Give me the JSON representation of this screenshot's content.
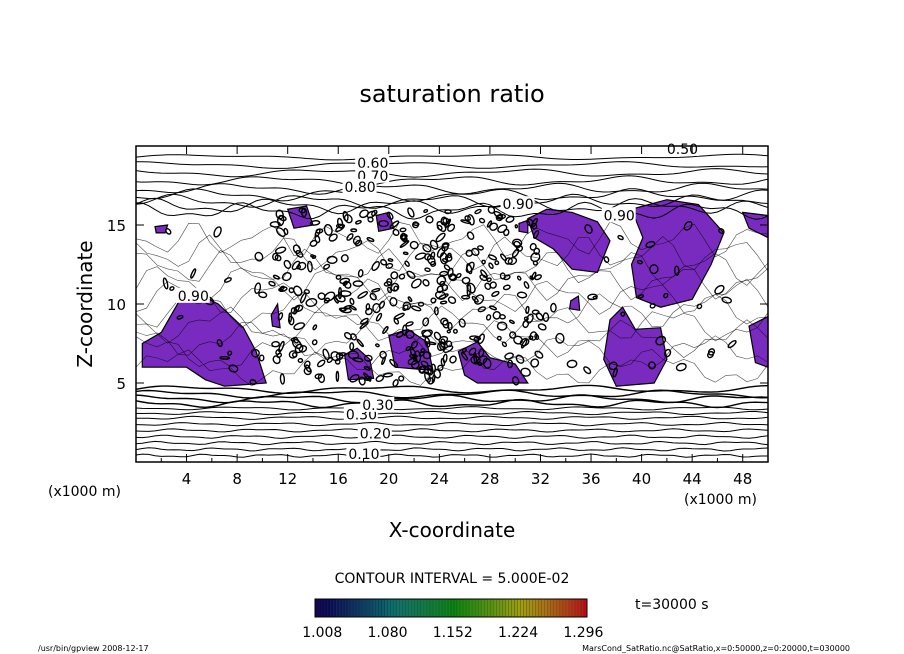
{
  "chart_data": {
    "type": "contour",
    "title": "saturation ratio",
    "xlabel": "X-coordinate",
    "ylabel": "Z-coordinate",
    "x_unit": "(x1000 m)",
    "z_unit": "(x1000 m)",
    "xlim": [
      0,
      50
    ],
    "zlim": [
      0,
      20
    ],
    "x_ticks": [
      "4",
      "8",
      "12",
      "16",
      "20",
      "24",
      "28",
      "32",
      "36",
      "40",
      "44",
      "48"
    ],
    "z_ticks": [
      "5",
      "10",
      "15"
    ],
    "contour_labels": [
      "0.50",
      "0.60",
      "0.70",
      "0.80",
      "0.90",
      "0.90",
      "0.90",
      "0.10",
      "0.20",
      "0.30",
      "0.30"
    ],
    "contour_interval_text": "CONTOUR INTERVAL = 5.000E-02",
    "colorbar_ticks": [
      "1.008",
      "1.080",
      "1.152",
      "1.224",
      "1.296"
    ],
    "colorbar_range": [
      1.0,
      1.3
    ],
    "time_label": "t=30000 s",
    "fill_color": "#7a2bbf",
    "footer_left": "/usr/bin/gpview   2008-12-17",
    "footer_right": "MarsCond_SatRatio.nc@SatRatio,x=0:50000,z=0:20000,t=030000"
  }
}
